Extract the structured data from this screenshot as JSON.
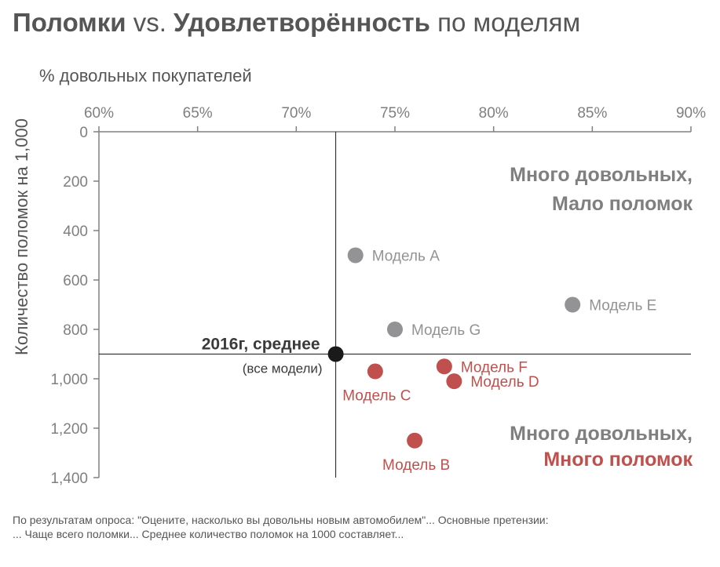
{
  "title": {
    "part1": "Поломки",
    "part2": " vs. ",
    "part3": "Удовлетворённость",
    "part4": " по моделям"
  },
  "footnote": {
    "line1": "По результатам опроса: \"Оцените, насколько вы довольны новым автомобилем\"... Основные претензии:",
    "line2": "... Чаще всего поломки... Среднее количество поломок на 1000 составляет..."
  },
  "chart_data": {
    "type": "scatter",
    "xlabel": "% довольных покупателей",
    "ylabel": "Количество поломок на 1,000",
    "xlim": [
      60,
      90
    ],
    "ylim": [
      0,
      1400
    ],
    "y_inverted": true,
    "x_axis_position": "top",
    "x_ticks": [
      "60%",
      "65%",
      "70%",
      "75%",
      "80%",
      "85%",
      "90%"
    ],
    "x_tick_values": [
      60,
      65,
      70,
      75,
      80,
      85,
      90
    ],
    "y_ticks": [
      "0",
      "200",
      "400",
      "600",
      "800",
      "1,000",
      "1,200",
      "1,400"
    ],
    "y_tick_values": [
      0,
      200,
      400,
      600,
      800,
      1000,
      1200,
      1400
    ],
    "colors": {
      "good": "#939395",
      "bad": "#c0504d",
      "average": "#1a1a1a",
      "quad_gray": "#7f7f7f"
    },
    "points": [
      {
        "label": "Модель A",
        "x": 73,
        "y": 500,
        "group": "good",
        "label_pos": "right"
      },
      {
        "label": "Модель E",
        "x": 84,
        "y": 700,
        "group": "good",
        "label_pos": "right"
      },
      {
        "label": "Модель G",
        "x": 75,
        "y": 800,
        "group": "good",
        "label_pos": "right"
      },
      {
        "label": "Модель C",
        "x": 74,
        "y": 970,
        "group": "bad",
        "label_pos": "below"
      },
      {
        "label": "Модель F",
        "x": 77.5,
        "y": 950,
        "group": "bad",
        "label_pos": "right"
      },
      {
        "label": "Модель D",
        "x": 78,
        "y": 1010,
        "group": "bad",
        "label_pos": "right"
      },
      {
        "label": "Модель B",
        "x": 76,
        "y": 1250,
        "group": "bad",
        "label_pos": "below"
      }
    ],
    "average": {
      "x": 72,
      "y": 900,
      "label": "2016г, среднее",
      "sublabel": "(все модели)"
    },
    "quadrants": {
      "top_line1": "Много довольных,",
      "top_line2": "Мало поломок",
      "bottom_line1": "Много довольных,",
      "bottom_line2": "Много поломок"
    }
  }
}
